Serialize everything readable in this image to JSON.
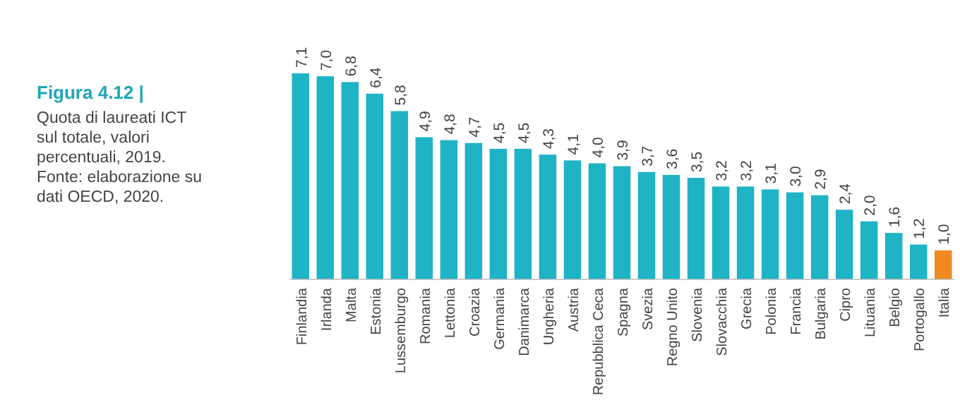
{
  "chart_data": {
    "type": "bar",
    "title": "Figura 4.12 |",
    "subtitle": "Quota di laureati ICT sul totale, valori percentuali, 2019.",
    "annotations": [
      "Fonte: elaborazione su dati OECD, 2020."
    ],
    "categories": [
      "Finlandia",
      "Irlanda",
      "Malta",
      "Estonia",
      "Lussemburgo",
      "Romania",
      "Lettonia",
      "Croazia",
      "Germania",
      "Danimarca",
      "Ungheria",
      "Austria",
      "Repubblica Ceca",
      "Spagna",
      "Svezia",
      "Regno Unito",
      "Slovenia",
      "Slovacchia",
      "Grecia",
      "Polonia",
      "Francia",
      "Bulgaria",
      "Cipro",
      "Lituania",
      "Belgio",
      "Portogallo",
      "Italia"
    ],
    "values": [
      7.1,
      7.0,
      6.8,
      6.4,
      5.8,
      4.9,
      4.8,
      4.7,
      4.5,
      4.5,
      4.3,
      4.1,
      4.0,
      3.9,
      3.7,
      3.6,
      3.5,
      3.2,
      3.2,
      3.1,
      3.0,
      2.9,
      2.4,
      2.0,
      1.6,
      1.2,
      1.0
    ],
    "value_labels": [
      "7,1",
      "7,0",
      "6,8",
      "6,4",
      "5,8",
      "4,9",
      "4,8",
      "4,7",
      "4,5",
      "4,5",
      "4,3",
      "4,1",
      "4,0",
      "3,9",
      "3,7",
      "3,6",
      "3,5",
      "3,2",
      "3,2",
      "3,1",
      "3,0",
      "2,9",
      "2,4",
      "2,0",
      "1,6",
      "1,2",
      "1,0"
    ],
    "colors": [
      "#1fb3c6",
      "#1fb3c6",
      "#1fb3c6",
      "#1fb3c6",
      "#1fb3c6",
      "#1fb3c6",
      "#1fb3c6",
      "#1fb3c6",
      "#1fb3c6",
      "#1fb3c6",
      "#1fb3c6",
      "#1fb3c6",
      "#1fb3c6",
      "#1fb3c6",
      "#1fb3c6",
      "#1fb3c6",
      "#1fb3c6",
      "#1fb3c6",
      "#1fb3c6",
      "#1fb3c6",
      "#1fb3c6",
      "#1fb3c6",
      "#1fb3c6",
      "#1fb3c6",
      "#1fb3c6",
      "#1fb3c6",
      "#ef8a22"
    ],
    "relative": false
  }
}
